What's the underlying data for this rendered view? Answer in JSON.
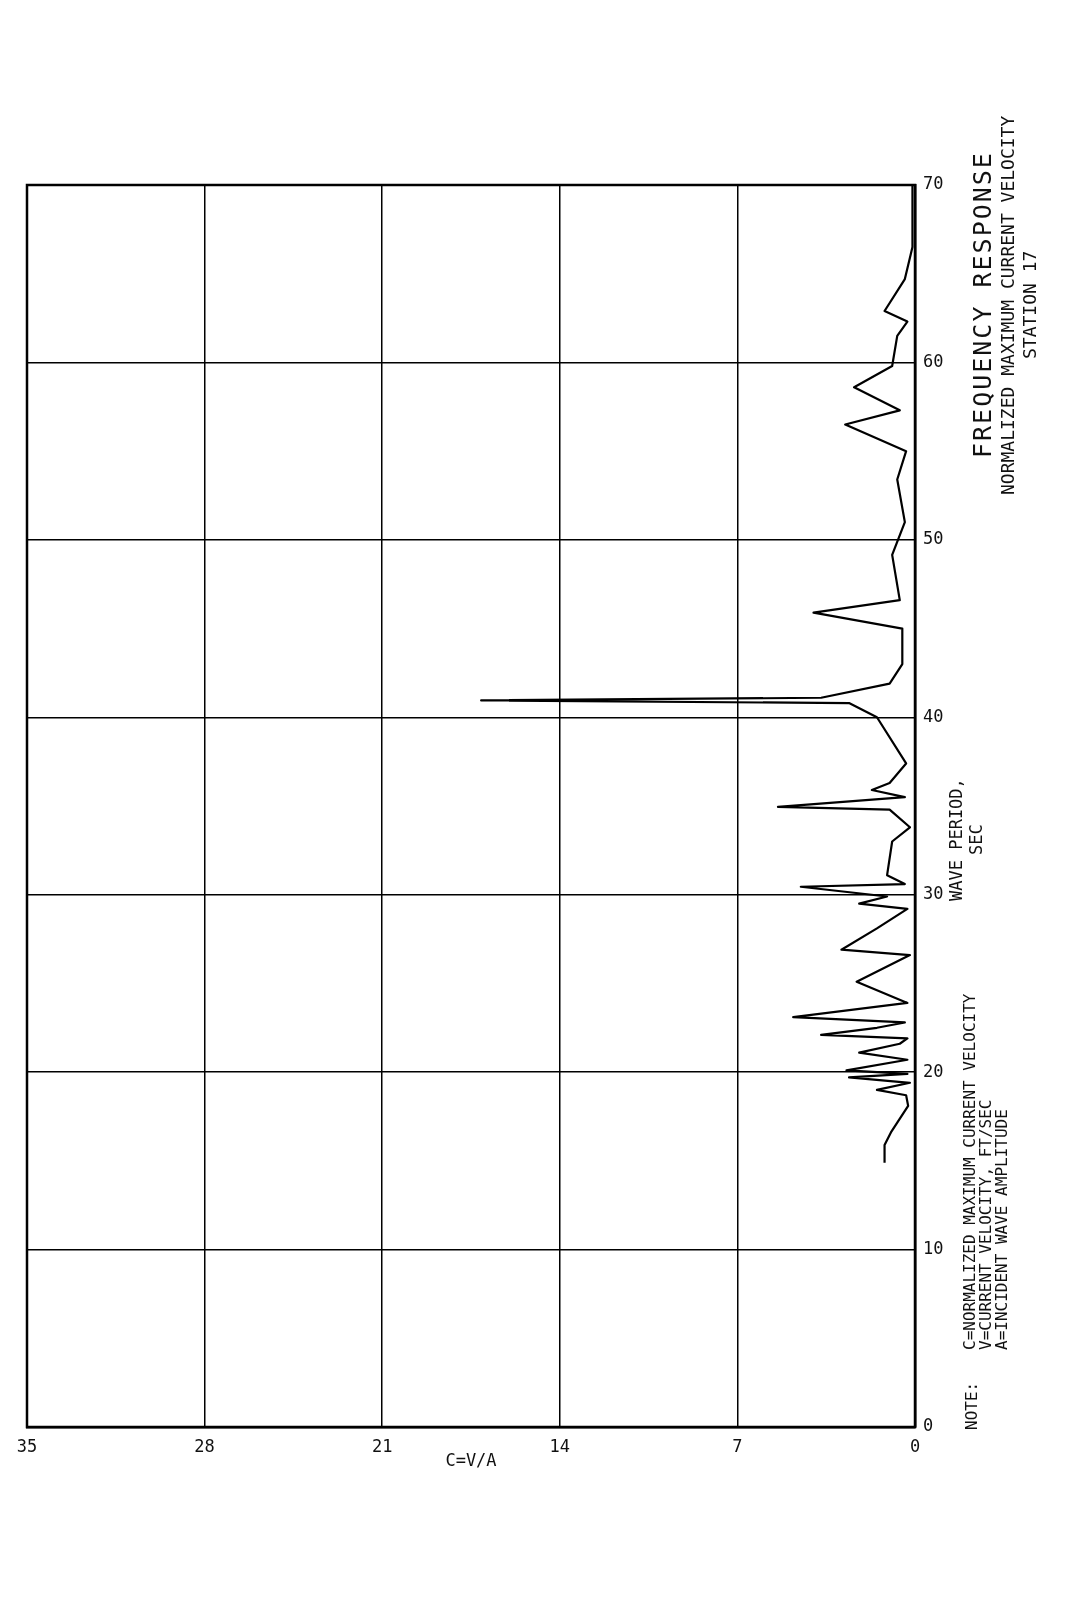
{
  "chart_data": {
    "type": "line",
    "title": "FREQUENCY RESPONSE",
    "subtitle": "NORMALIZED MAXIMUM CURRENT VELOCITY\nSTATION 17",
    "xlabel": "C=V/A",
    "ylabel": "WAVE PERIOD, SEC",
    "annotations": [
      "NOTE:",
      "C=NORMALIZED MAXIMUM CURRENT VELOCITY",
      "V=CURRENT VELOCITY, FT/SEC",
      "A=INCIDENT WAVE AMPLITUDE"
    ],
    "xlim": [
      35,
      0
    ],
    "xticks": [
      35,
      28,
      21,
      14,
      7,
      0
    ],
    "ylim": [
      0,
      70
    ],
    "yticks": [
      0,
      10,
      20,
      30,
      40,
      50,
      60,
      70
    ],
    "grid": true,
    "legend": false,
    "marker": "none",
    "line_style": "solid",
    "series": [
      {
        "color": "#000000",
        "x": [
          1.2,
          1.2,
          0.95,
          0.27,
          0.35,
          1.5,
          0.2,
          2.6,
          0.3,
          2.7,
          0.3,
          2.2,
          0.6,
          0.3,
          3.7,
          1.5,
          0.4,
          4.8,
          0.3,
          2.3,
          0.2,
          2.9,
          1.5,
          0.3,
          2.2,
          1.1,
          4.5,
          0.4,
          1.1,
          0.9,
          0.2,
          1.0,
          5.4,
          0.4,
          1.7,
          1.0,
          0.35,
          1.5,
          2.6,
          17.1,
          3.7,
          1.0,
          0.5,
          0.5,
          4.0,
          0.6,
          0.9,
          0.4,
          0.7,
          0.35,
          2.75,
          0.6,
          2.4,
          0.9,
          0.7,
          0.3,
          1.2,
          0.4,
          0.1,
          0.1
        ],
        "values": [
          14.9,
          15.9,
          16.6,
          18.1,
          18.7,
          19.0,
          19.4,
          19.7,
          19.9,
          20.1,
          20.7,
          21.1,
          21.6,
          21.9,
          22.1,
          22.5,
          22.8,
          23.1,
          23.9,
          25.1,
          26.6,
          26.9,
          28.1,
          29.2,
          29.5,
          29.9,
          30.45,
          30.6,
          31.1,
          33.0,
          33.8,
          34.8,
          34.95,
          35.5,
          35.9,
          36.3,
          37.4,
          40.0,
          40.8,
          40.95,
          41.1,
          41.9,
          43.0,
          45.0,
          45.9,
          46.6,
          49.15,
          51.0,
          53.4,
          55.0,
          56.5,
          57.3,
          58.6,
          59.8,
          61.5,
          62.3,
          62.9,
          64.7,
          66.5,
          70
        ]
      }
    ]
  }
}
